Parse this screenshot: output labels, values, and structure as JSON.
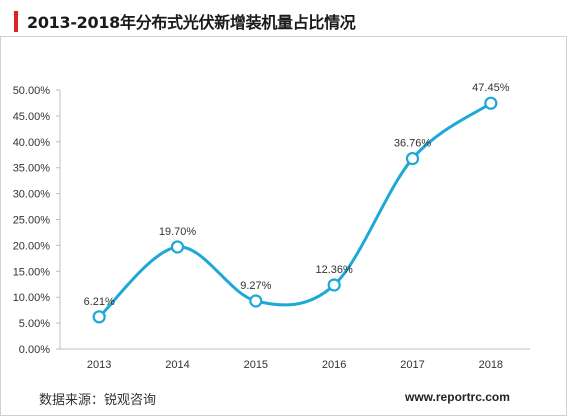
{
  "header": {
    "title": "2013-2018年分布式光伏新增装机量占比情况",
    "accent_color": "#d9262c"
  },
  "footer": {
    "source": "数据来源：锐观咨询",
    "website": "www.reportrc.com"
  },
  "chart_data": {
    "type": "line",
    "title": "2013-2018年分布式光伏新增装机量占比情况",
    "xlabel": "",
    "ylabel": "",
    "categories": [
      "2013",
      "2014",
      "2015",
      "2016",
      "2017",
      "2018"
    ],
    "series": [
      {
        "values": [
          6.21,
          19.7,
          9.27,
          12.36,
          36.76,
          47.45
        ],
        "data_labels": [
          "6.21%",
          "19.70%",
          "9.27%",
          "12.36%",
          "36.76%",
          "47.45%"
        ],
        "color": "#1ea8d8",
        "smooth": true,
        "markers": "hollow-circle"
      }
    ],
    "ylim": [
      0,
      50
    ],
    "y_ticks": [
      "0.00%",
      "5.00%",
      "10.00%",
      "15.00%",
      "20.00%",
      "25.00%",
      "30.00%",
      "35.00%",
      "40.00%",
      "45.00%",
      "50.00%"
    ],
    "grid": false,
    "legend": "none"
  }
}
